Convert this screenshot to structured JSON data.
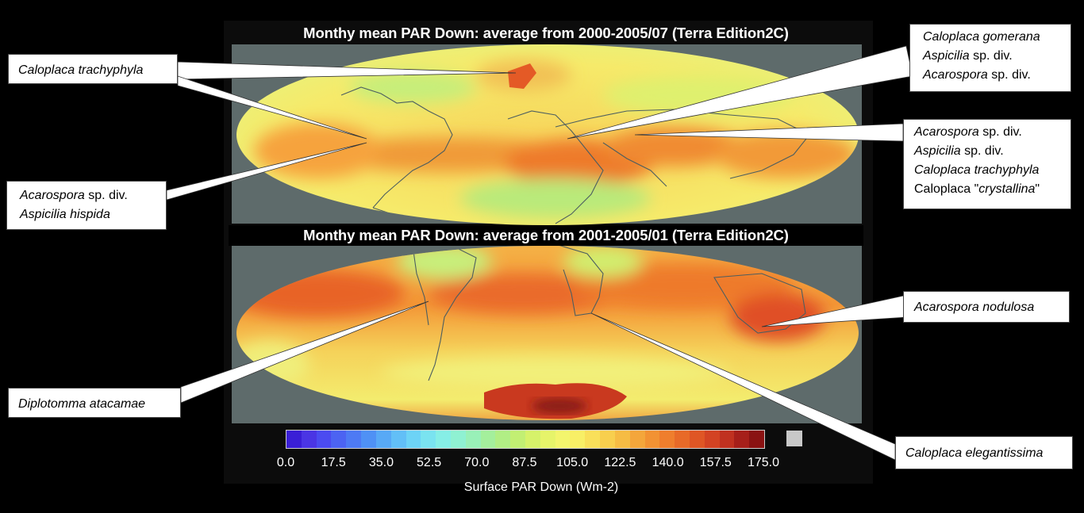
{
  "map_top": {
    "title": "Monthy mean PAR Down: average from 2000-2005/07 (Terra Edition2C)"
  },
  "map_bottom": {
    "title": "Monthy mean PAR Down: average from 2001-2005/01 (Terra Edition2C)"
  },
  "colorbar": {
    "label": "Surface PAR Down (Wm-2)",
    "ticks": [
      "0.0",
      "17.5",
      "35.0",
      "52.5",
      "70.0",
      "87.5",
      "105.0",
      "122.5",
      "140.0",
      "157.5",
      "175.0"
    ],
    "range": [
      0,
      175
    ],
    "colors": [
      "#3a1fd6",
      "#4a35e4",
      "#4b4bf0",
      "#4c63f2",
      "#4e7af4",
      "#4f91f5",
      "#58a9f6",
      "#62bff7",
      "#6dd3f6",
      "#7ae3f0",
      "#86eee6",
      "#8ff1d2",
      "#99f0b8",
      "#a4ef9c",
      "#b1ee85",
      "#c2ef73",
      "#d6f26a",
      "#e6f46a",
      "#f3f56d",
      "#f8ef66",
      "#f9e05a",
      "#f8cf4e",
      "#f6bc44",
      "#f4a63b",
      "#f29233",
      "#ef7e2d",
      "#e86a28",
      "#df5625",
      "#d34323",
      "#c03120",
      "#a61f1a",
      "#8a1212"
    ],
    "no_data_color": "#c8c8c8"
  },
  "callouts": {
    "c1": {
      "lines": [
        [
          {
            "t": "Caloplaca trachyphyla",
            "i": true
          }
        ]
      ]
    },
    "c2": {
      "lines": [
        [
          {
            "t": "Acarospora",
            "i": true
          },
          {
            "t": " sp. div.",
            "i": false
          }
        ],
        [
          {
            "t": "Aspicilia hispida",
            "i": true
          }
        ]
      ]
    },
    "c3": {
      "lines": [
        [
          {
            "t": "Caloplaca gomerana",
            "i": true
          }
        ],
        [
          {
            "t": "Aspicilia",
            "i": true
          },
          {
            "t": " sp. div.",
            "i": false
          }
        ],
        [
          {
            "t": "Acarospora",
            "i": true
          },
          {
            "t": " sp. div.",
            "i": false
          }
        ]
      ]
    },
    "c4": {
      "lines": [
        [
          {
            "t": "Acarospora",
            "i": true
          },
          {
            "t": " sp. div.",
            "i": false
          }
        ],
        [
          {
            "t": "Aspicilia",
            "i": true
          },
          {
            "t": " sp. div.",
            "i": false
          }
        ],
        [
          {
            "t": "Caloplaca trachyphyla",
            "i": true
          }
        ],
        [
          {
            "t": "Caloplaca \"",
            "i": false
          },
          {
            "t": "crystallina",
            "i": true
          },
          {
            "t": "\"",
            "i": false
          }
        ]
      ]
    },
    "c5": {
      "lines": [
        [
          {
            "t": "Acarospora nodulosa",
            "i": true
          }
        ]
      ]
    },
    "c6": {
      "lines": [
        [
          {
            "t": "Diplotomma atacamae",
            "i": true
          }
        ]
      ]
    },
    "c7": {
      "lines": [
        [
          {
            "t": "Caloplaca elegantissima",
            "i": true
          }
        ]
      ]
    }
  }
}
